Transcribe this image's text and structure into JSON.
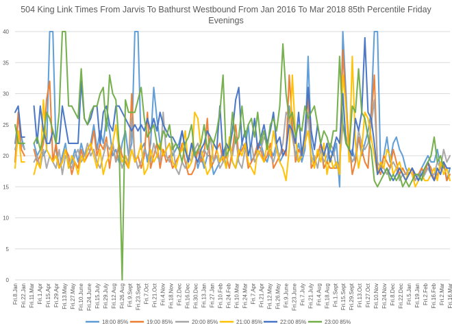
{
  "chart_data": {
    "type": "line",
    "title_lines": [
      "504 King Link Times From Jarvis To Bathurst Westbound From Jan 2016 To Mar 2018 85th Percentile Friday",
      "Evenings"
    ],
    "xlabel": "",
    "ylabel": "",
    "ylim": [
      0,
      40
    ],
    "y_ticks": [
      0,
      5,
      10,
      15,
      20,
      25,
      30,
      35,
      40
    ],
    "grid": true,
    "legend_position": "bottom",
    "x_tick_labels": [
      "Fri.8.Jan",
      "Fri.22.Jan",
      "Fri.11.Mar",
      "Fri.1.Apr",
      "Fri.15.Apr",
      "Fri.29.Apr",
      "Fri.13.May",
      "Fri.27.May",
      "Fri.10.June",
      "Fri.24.June",
      "Fri.15.July",
      "Fri.29.July",
      "Fri.12.Aug",
      "Fri.26.Aug",
      "Fri.9.Sept",
      "Fri.23.Sept",
      "Fri.7.Oct",
      "Fri.21.Oct",
      "Fri.4.Nov",
      "Fri.18.Nov",
      "Fri.2.Dec",
      "Fri.16.Dec",
      "Fri.30.Dec",
      "Fri.13.Jan",
      "Fri.27.Jan",
      "Fri.10.Feb",
      "Fri.24.Feb",
      "Fri.10.Mar",
      "Fri.24.Mar",
      "Fri.7.Apr",
      "Fri.21.Apr",
      "Fri.12.May",
      "Fri.26.May",
      "Fri.9.June",
      "Fri.23.June",
      "Fri.7.July",
      "Fri.21.July",
      "Fri.4.Aug",
      "Fri.18.Aug",
      "Fri.1.Sept",
      "Fri.15.Sept",
      "Fri.29.Sept",
      "Fri.13.Oct",
      "Fri.27.Oct",
      "Fri.10.Nov",
      "Fri.24.Nov",
      "Fri.8.Dec",
      "Fri.22.Dec",
      "Fri.5.Jan",
      "Fri.19.Jan",
      "Fri.2.Feb",
      "Fri.16.Feb",
      "Fri.2.Mar",
      "Fri.16.Mar"
    ],
    "series": [
      {
        "name": "18:00 85%",
        "color": "#5b9bd5",
        "values": [
          22,
          26,
          23,
          21,
          null,
          null,
          22,
          20,
          21,
          20,
          21,
          40,
          40,
          21,
          18,
          20,
          22,
          18,
          19,
          21,
          19,
          22,
          20,
          21,
          22,
          25,
          21,
          24,
          22,
          26,
          24,
          20,
          21,
          19,
          22,
          24,
          20,
          22,
          40,
          40,
          21,
          22,
          19,
          22,
          31,
          26,
          22,
          20,
          21,
          22,
          20,
          21,
          22,
          24,
          21,
          19,
          22,
          21,
          18,
          20,
          18,
          20,
          20,
          17,
          18,
          19,
          21,
          18,
          22,
          19,
          18,
          20,
          22,
          21,
          25,
          19,
          20,
          21,
          22,
          20,
          19,
          21,
          20,
          22,
          19,
          20,
          21,
          28,
          24,
          20,
          22,
          19,
          21,
          36,
          22,
          19,
          20,
          22,
          18,
          19,
          21,
          20,
          22,
          15,
          40,
          30,
          20,
          21,
          19,
          23,
          20,
          22,
          24,
          27,
          40,
          40,
          18,
          20,
          23,
          19,
          22,
          23,
          21,
          20,
          18,
          17,
          18,
          17,
          16,
          18,
          19,
          20,
          19,
          19,
          21,
          18,
          19,
          16,
          18
        ]
      },
      {
        "name": "19:00 85%",
        "color": "#ed7d31",
        "values": [
          19,
          27,
          21,
          20,
          null,
          null,
          21,
          19,
          20,
          22,
          29,
          32,
          19,
          22,
          18,
          19,
          21,
          20,
          17,
          19,
          18,
          21,
          19,
          20,
          21,
          24,
          20,
          22,
          21,
          23,
          18,
          22,
          19,
          22,
          20,
          19,
          18,
          30,
          19,
          20,
          18,
          20,
          27,
          18,
          20,
          22,
          18,
          21,
          19,
          20,
          18,
          19,
          20,
          22,
          19,
          17,
          17,
          18,
          21,
          19,
          20,
          26,
          18,
          19,
          21,
          22,
          19,
          20,
          18,
          21,
          25,
          20,
          21,
          22,
          18,
          19,
          20,
          22,
          21,
          19,
          20,
          22,
          18,
          19,
          20,
          21,
          20,
          33,
          25,
          19,
          21,
          20,
          22,
          30,
          18,
          19,
          20,
          22,
          18,
          19,
          18,
          18,
          18,
          18,
          37,
          28,
          22,
          17,
          19,
          23,
          21,
          19,
          18,
          26,
          33,
          18,
          17,
          20,
          19,
          18,
          21,
          19,
          17,
          18,
          17,
          17,
          18,
          16,
          17,
          18,
          17,
          19,
          18,
          16,
          17,
          18,
          19,
          16,
          17
        ]
      },
      {
        "name": "20:00 85%",
        "color": "#a5a5a5",
        "values": [
          21,
          23,
          22,
          21,
          null,
          null,
          19,
          20,
          18,
          21,
          18,
          20,
          19,
          18,
          21,
          17,
          20,
          19,
          18,
          20,
          21,
          19,
          20,
          22,
          20,
          21,
          19,
          18,
          20,
          22,
          21,
          22,
          19,
          20,
          18,
          20,
          19,
          26,
          20,
          18,
          19,
          21,
          20,
          19,
          22,
          20,
          19,
          27,
          20,
          19,
          22,
          18,
          17,
          19,
          18,
          20,
          19,
          21,
          22,
          20,
          21,
          20,
          23,
          19,
          20,
          18,
          19,
          21,
          22,
          20,
          23,
          19,
          18,
          21,
          20,
          22,
          19,
          20,
          21,
          23,
          22,
          20,
          19,
          21,
          20,
          22,
          27,
          26,
          23,
          20,
          19,
          21,
          22,
          27,
          19,
          20,
          18,
          21,
          19,
          20,
          22,
          21,
          18,
          19,
          25,
          23,
          21,
          19,
          20,
          24,
          22,
          21,
          22,
          25,
          29,
          19,
          18,
          18,
          17,
          18,
          19,
          18,
          16,
          17,
          17,
          18,
          17,
          16,
          17,
          16,
          17,
          18,
          17,
          17,
          19,
          18,
          21,
          19,
          20
        ]
      },
      {
        "name": "21:00 85%",
        "color": "#ffc000",
        "values": [
          18,
          24,
          19,
          19,
          null,
          null,
          17,
          19,
          18,
          29,
          21,
          20,
          19,
          20,
          18,
          19,
          21,
          18,
          20,
          19,
          17,
          20,
          19,
          21,
          22,
          20,
          18,
          21,
          17,
          19,
          20,
          22,
          25,
          21,
          19,
          20,
          18,
          21,
          19,
          20,
          22,
          17,
          18,
          21,
          19,
          20,
          22,
          20,
          21,
          22,
          19,
          18,
          20,
          21,
          24,
          18,
          19,
          27,
          26,
          21,
          19,
          17,
          18,
          22,
          21,
          19,
          20,
          18,
          23,
          19,
          18,
          21,
          20,
          22,
          19,
          18,
          17,
          21,
          20,
          19,
          22,
          20,
          24,
          21,
          19,
          18,
          16,
          21,
          33,
          23,
          19,
          20,
          22,
          24,
          20,
          18,
          21,
          19,
          22,
          17,
          20,
          18,
          19,
          17,
          33,
          28,
          19,
          36,
          22,
          18,
          21,
          27,
          26,
          23,
          20,
          17,
          19,
          18,
          21,
          20,
          17,
          18,
          19,
          17,
          16,
          18,
          17,
          15,
          16,
          17,
          16,
          16,
          17,
          18,
          16,
          19,
          17,
          18,
          16
        ]
      },
      {
        "name": "22:00 85%",
        "color": "#4472c4",
        "values": [
          27,
          28,
          23,
          23,
          null,
          null,
          28,
          22,
          28,
          24,
          22,
          22,
          24,
          22,
          22,
          28,
          25,
          22,
          22,
          22,
          22,
          32,
          26,
          25,
          26,
          28,
          28,
          22,
          27,
          28,
          25,
          24,
          28,
          28,
          27,
          26,
          25,
          24,
          25,
          24,
          25,
          24,
          26,
          24,
          26,
          24,
          27,
          25,
          24,
          23,
          23,
          22,
          21,
          24,
          21,
          19,
          22,
          20,
          19,
          21,
          22,
          24,
          23,
          22,
          21,
          28,
          20,
          22,
          21,
          24,
          29,
          31,
          22,
          24,
          20,
          22,
          26,
          21,
          23,
          25,
          22,
          24,
          27,
          22,
          23,
          20,
          21,
          25,
          24,
          22,
          27,
          20,
          24,
          31,
          24,
          21,
          25,
          22,
          20,
          22,
          19,
          21,
          23,
          22,
          30,
          22,
          21,
          20,
          26,
          24,
          27,
          39,
          27,
          26,
          22,
          17,
          18,
          17,
          18,
          17,
          16,
          17,
          18,
          17,
          16,
          17,
          18,
          17,
          16,
          17,
          18,
          19,
          17,
          16,
          18,
          17,
          19,
          18,
          18
        ]
      },
      {
        "name": "23:00 85%",
        "color": "#70ad47",
        "values": [
          25,
          22,
          22,
          22,
          null,
          null,
          22,
          23,
          21,
          23,
          27,
          26,
          24,
          22,
          27,
          40,
          42,
          28,
          28,
          27,
          26,
          34,
          26,
          25,
          27,
          28,
          28,
          30,
          31,
          24,
          33,
          30,
          29,
          22,
          0,
          29,
          27,
          27,
          27,
          29,
          31,
          26,
          23,
          24,
          25,
          22,
          21,
          24,
          23,
          25,
          21,
          22,
          21,
          19,
          22,
          23,
          25,
          20,
          21,
          22,
          25,
          21,
          23,
          22,
          24,
          27,
          33,
          20,
          21,
          27,
          22,
          23,
          28,
          23,
          25,
          26,
          23,
          27,
          22,
          24,
          21,
          25,
          26,
          24,
          28,
          38,
          30,
          26,
          27,
          23,
          25,
          24,
          28,
          26,
          27,
          28,
          25,
          22,
          24,
          23,
          21,
          24,
          24,
          36,
          25,
          22,
          21,
          28,
          27,
          34,
          27,
          26,
          23,
          21,
          16,
          15,
          16,
          17,
          18,
          16,
          17,
          16,
          17,
          15,
          16,
          15,
          16,
          17,
          17,
          16,
          18,
          19,
          20,
          23,
          19,
          20,
          18
        ]
      }
    ]
  }
}
